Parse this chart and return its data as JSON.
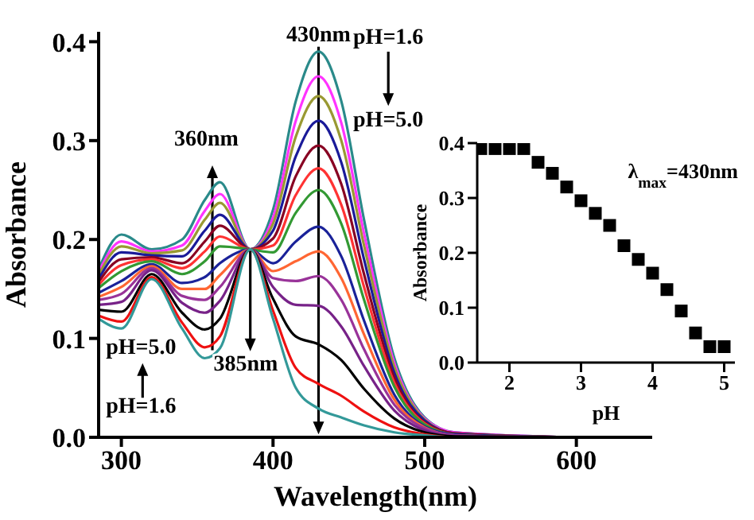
{
  "chart_data": [
    {
      "type": "line",
      "xlabel": "Wavelength(nm)",
      "ylabel": "Absorbance",
      "x": [
        285,
        300,
        320,
        340,
        355,
        365,
        385,
        400,
        415,
        430,
        445,
        460,
        480,
        500,
        520,
        600
      ],
      "xlim": [
        285,
        650
      ],
      "xticks": [
        300,
        400,
        500,
        600
      ],
      "ylim": [
        0,
        0.41
      ],
      "yticks": [
        {
          "value": 0,
          "label": "0.0"
        },
        {
          "value": 0.1,
          "label": "0.1"
        },
        {
          "value": 0.2,
          "label": "0.2"
        },
        {
          "value": 0.3,
          "label": "0.3"
        },
        {
          "value": 0.4,
          "label": "0.4"
        }
      ],
      "grid": false,
      "legend": false,
      "marker": "none",
      "line_style": "solid",
      "series": [
        {
          "color": "#2a8a8a",
          "values": [
            0.17,
            0.205,
            0.19,
            0.2,
            0.24,
            0.258,
            0.19,
            0.23,
            0.34,
            0.39,
            0.34,
            0.22,
            0.08,
            0.02,
            0.005,
            0
          ]
        },
        {
          "color": "#ff33ff",
          "values": [
            0.167,
            0.198,
            0.188,
            0.194,
            0.229,
            0.246,
            0.19,
            0.222,
            0.32,
            0.365,
            0.318,
            0.206,
            0.075,
            0.019,
            0.005,
            0
          ]
        },
        {
          "color": "#999933",
          "values": [
            0.164,
            0.193,
            0.186,
            0.189,
            0.22,
            0.237,
            0.19,
            0.216,
            0.304,
            0.345,
            0.3,
            0.194,
            0.071,
            0.018,
            0.004,
            0
          ]
        },
        {
          "color": "#1a1a99",
          "values": [
            0.16,
            0.187,
            0.184,
            0.183,
            0.209,
            0.225,
            0.19,
            0.209,
            0.284,
            0.32,
            0.278,
            0.18,
            0.065,
            0.017,
            0.004,
            0
          ]
        },
        {
          "color": "#880022",
          "values": [
            0.157,
            0.18,
            0.182,
            0.176,
            0.198,
            0.214,
            0.19,
            0.201,
            0.264,
            0.295,
            0.256,
            0.165,
            0.06,
            0.015,
            0.004,
            0
          ]
        },
        {
          "color": "#ff3333",
          "values": [
            0.154,
            0.174,
            0.18,
            0.171,
            0.188,
            0.203,
            0.19,
            0.194,
            0.245,
            0.272,
            0.235,
            0.152,
            0.055,
            0.014,
            0.003,
            0
          ]
        },
        {
          "color": "#339933",
          "values": [
            0.151,
            0.168,
            0.178,
            0.165,
            0.178,
            0.193,
            0.19,
            0.187,
            0.227,
            0.25,
            0.216,
            0.139,
            0.051,
            0.013,
            0.003,
            0
          ]
        },
        {
          "color": "#1a2299",
          "values": [
            0.146,
            0.158,
            0.175,
            0.156,
            0.162,
            0.176,
            0.19,
            0.176,
            0.198,
            0.213,
            0.183,
            0.118,
            0.043,
            0.011,
            0.003,
            0
          ]
        },
        {
          "color": "#ff6633",
          "values": [
            0.142,
            0.152,
            0.173,
            0.15,
            0.15,
            0.164,
            0.19,
            0.168,
            0.178,
            0.188,
            0.161,
            0.104,
            0.038,
            0.01,
            0.002,
            0
          ]
        },
        {
          "color": "#993399",
          "values": [
            0.139,
            0.145,
            0.171,
            0.143,
            0.139,
            0.152,
            0.19,
            0.161,
            0.158,
            0.163,
            0.139,
            0.089,
            0.033,
            0.009,
            0.002,
            0
          ]
        },
        {
          "color": "#772288",
          "values": [
            0.134,
            0.137,
            0.169,
            0.136,
            0.126,
            0.138,
            0.19,
            0.152,
            0.134,
            0.133,
            0.112,
            0.072,
            0.027,
            0.007,
            0.001,
            0
          ]
        },
        {
          "color": "#000000",
          "values": [
            0.129,
            0.127,
            0.165,
            0.126,
            0.109,
            0.12,
            0.19,
            0.14,
            0.102,
            0.094,
            0.078,
            0.049,
            0.019,
            0.005,
            0.001,
            0
          ]
        },
        {
          "color": "#ee1111",
          "values": [
            0.123,
            0.117,
            0.162,
            0.116,
            0.091,
            0.102,
            0.19,
            0.128,
            0.07,
            0.054,
            0.042,
            0.026,
            0.01,
            0.003,
            0,
            0
          ]
        },
        {
          "color": "#339999",
          "values": [
            0.12,
            0.11,
            0.16,
            0.11,
            0.08,
            0.09,
            0.19,
            0.12,
            0.05,
            0.029,
            0.02,
            0.012,
            0.005,
            0.002,
            0,
            0
          ]
        }
      ],
      "annotations": [
        "430nm",
        "360nm",
        "385nm",
        "pH=1.6",
        "pH=5.0",
        "pH=5.0",
        "pH=1.6"
      ]
    },
    {
      "type": "scatter",
      "xlabel": "pH",
      "ylabel": "Absorbance",
      "x": [
        1.6,
        1.8,
        2.0,
        2.2,
        2.4,
        2.6,
        2.8,
        3.0,
        3.2,
        3.4,
        3.6,
        3.8,
        4.0,
        4.2,
        4.4,
        4.6,
        4.8,
        5.0
      ],
      "values": [
        0.39,
        0.39,
        0.39,
        0.39,
        0.365,
        0.345,
        0.32,
        0.295,
        0.272,
        0.25,
        0.213,
        0.188,
        0.163,
        0.133,
        0.094,
        0.054,
        0.029,
        0.029
      ],
      "color": "#000000",
      "marker": "square",
      "xlim": [
        1.55,
        5.15
      ],
      "xticks": [
        2,
        3,
        4,
        5
      ],
      "ylim": [
        0,
        0.4
      ],
      "yticks": [
        {
          "value": 0,
          "label": "0.0"
        },
        {
          "value": 0.1,
          "label": "0.1"
        },
        {
          "value": 0.2,
          "label": "0.2"
        },
        {
          "value": 0.3,
          "label": "0.3"
        },
        {
          "value": 0.4,
          "label": "0.4"
        }
      ],
      "grid": false,
      "legend": false,
      "annotations": [
        "λ$_{max}$=430nm"
      ]
    }
  ]
}
